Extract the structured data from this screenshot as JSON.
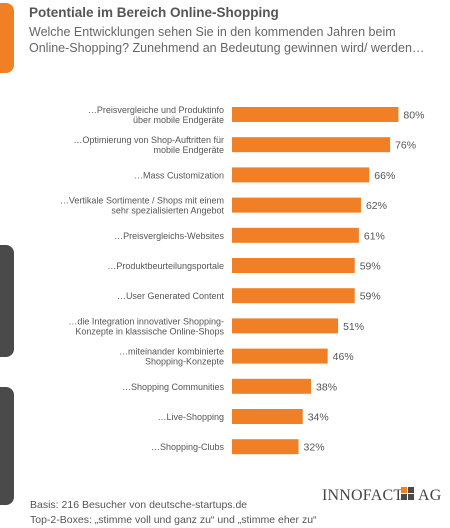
{
  "title": "Potentiale im Bereich Online-Shopping",
  "subtitle": "Welche Entwicklungen sehen Sie in den kommenden Jahren beim Online-Shopping? Zunehmend an Bedeutung gewinnen wird/ werden…",
  "footer": {
    "basis": "Basis: 216 Besucher von deutsche-startups.de",
    "top2": "Top-2-Boxes: „stimme voll und ganz zu“ und „stimme eher zu“"
  },
  "logo": {
    "text1": "INNOFACT",
    "text2": "AG"
  },
  "colors": {
    "bar": "#f07f26",
    "accent": "#f07f26",
    "dark": "#4a4a4a",
    "text": "#555555"
  },
  "chart_data": {
    "type": "bar",
    "orientation": "horizontal",
    "categories": [
      "…Preisvergleiche und Produktinfo über mobile Endgeräte",
      "…Optimierung von Shop-Auftritten für mobile Endgeräte",
      "…Mass Customization",
      "…Vertikale Sortimente / Shops mit einem sehr spezialisierten Angebot",
      "…Preisvergleichs-Websites",
      "…Produktbeurteilungsportale",
      "…User Generated Content",
      "…die Integration innovativer Shopping-Konzepte in klassische Online-Shops",
      "…miteinander kombinierte Shopping-Konzepte",
      "…Shopping Communities",
      "…Live-Shopping",
      "…Shopping-Clubs"
    ],
    "label_lines": [
      [
        "…Preisvergleiche und Produktinfo",
        "über mobile Endgeräte"
      ],
      [
        "…Optimierung von Shop-Auftritten für",
        "mobile Endgeräte"
      ],
      [
        "…Mass Customization"
      ],
      [
        "…Vertikale Sortimente / Shops mit einem",
        "sehr spezialisierten Angebot"
      ],
      [
        "…Preisvergleichs-Websites"
      ],
      [
        "…Produktbeurteilungsportale"
      ],
      [
        "…User Generated Content"
      ],
      [
        "…die Integration innovativer Shopping-",
        "Konzepte in klassische Online-Shops"
      ],
      [
        "…miteinander kombinierte",
        "Shopping-Konzepte"
      ],
      [
        "…Shopping Communities"
      ],
      [
        "…Live-Shopping"
      ],
      [
        "…Shopping-Clubs"
      ]
    ],
    "values": [
      80,
      76,
      66,
      62,
      61,
      59,
      59,
      51,
      46,
      38,
      34,
      32
    ],
    "value_labels": [
      "80%",
      "76%",
      "66%",
      "62%",
      "61%",
      "59%",
      "59%",
      "51%",
      "46%",
      "38%",
      "34%",
      "32%"
    ],
    "unit": "%",
    "xlim": [
      0,
      100
    ],
    "grid": false,
    "legend": "none"
  }
}
